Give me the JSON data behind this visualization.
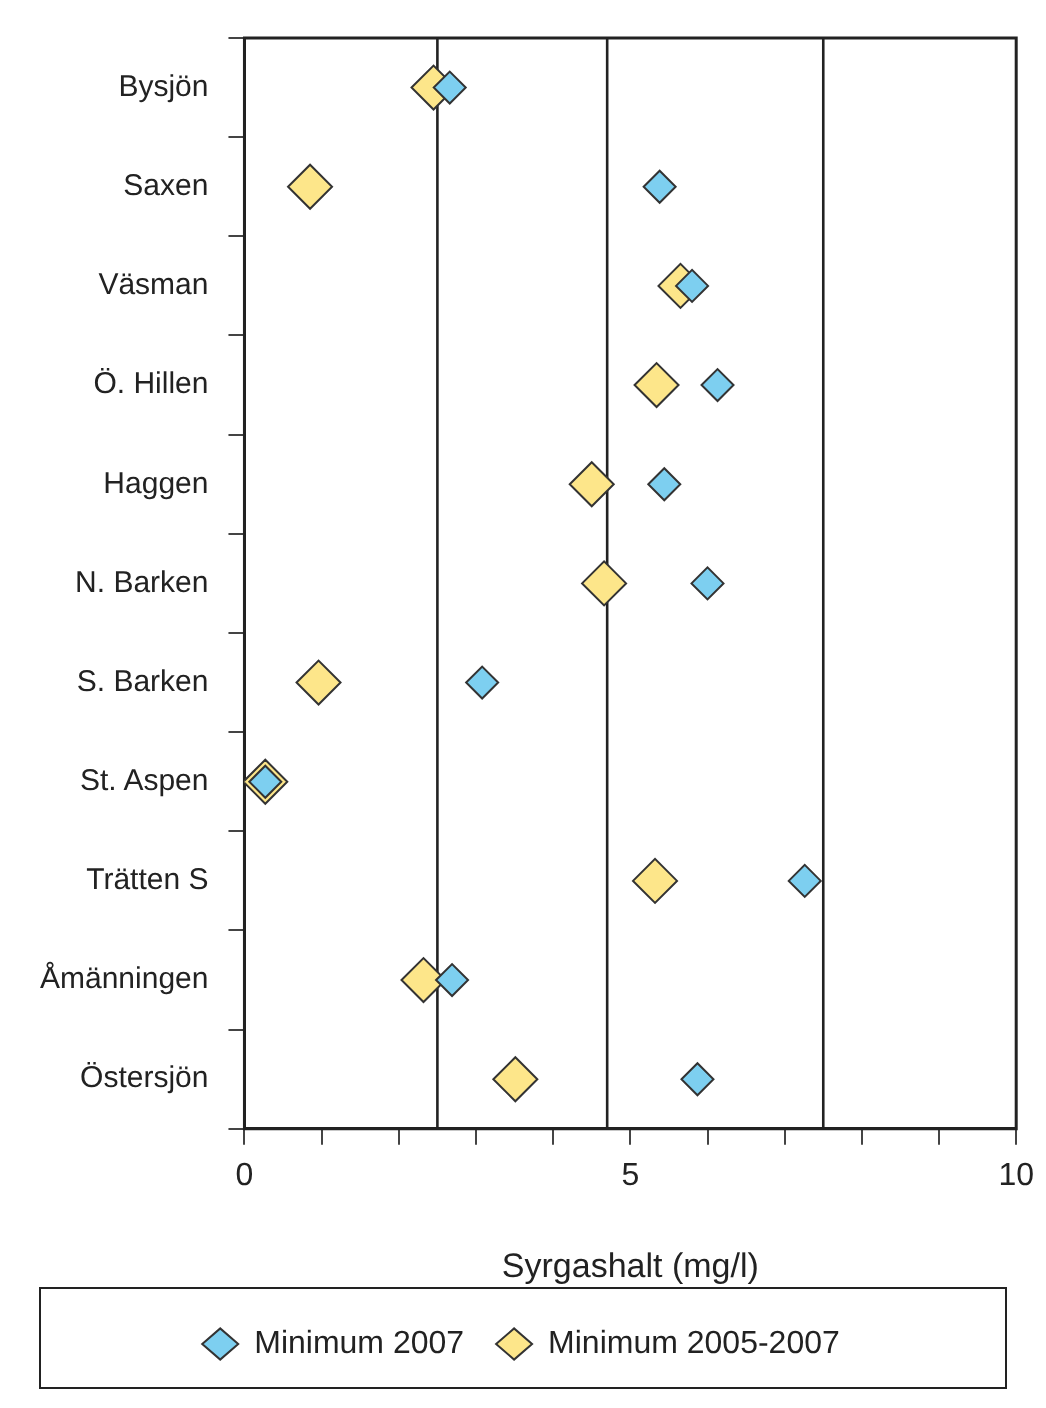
{
  "chart_data": {
    "type": "scatter",
    "orientation": "horizontal",
    "xlabel": "Syrgashalt (mg/l)",
    "categories": [
      "Bysjön",
      "Saxen",
      "Väsman",
      "Ö. Hillen",
      "Haggen",
      "N. Barken",
      "S. Barken",
      "St. Aspen",
      "Trätten S",
      "Åmänningen",
      "Östersjön"
    ],
    "series": [
      {
        "name": "Minimum 2007",
        "color": "#7dcff0",
        "values": [
          2.66,
          5.38,
          5.8,
          6.13,
          5.44,
          6.0,
          3.08,
          0.27,
          7.26,
          2.69,
          5.87
        ]
      },
      {
        "name": "Minimum 2005-2007",
        "color": "#fde68a",
        "values": [
          2.45,
          0.85,
          5.65,
          5.34,
          4.5,
          4.66,
          0.96,
          0.27,
          5.32,
          2.32,
          3.51
        ]
      }
    ],
    "xlim": [
      0,
      10
    ],
    "xticks": [
      0,
      {
        "value": 1,
        "label": null
      },
      {
        "value": 2,
        "label": null
      },
      {
        "value": 3,
        "label": null
      },
      {
        "value": 4,
        "label": null
      },
      5,
      {
        "value": 6,
        "label": null
      },
      {
        "value": 7,
        "label": null
      },
      {
        "value": 8,
        "label": null
      },
      {
        "value": 9,
        "label": null
      },
      10
    ],
    "ref_lines": [
      {
        "axis": "x",
        "value": 2.5,
        "color": "#222222"
      },
      {
        "axis": "x",
        "value": 4.7,
        "color": "#222222"
      },
      {
        "axis": "x",
        "value": 7.5,
        "color": "#222222"
      }
    ],
    "grid": false,
    "legend": "bottom",
    "marker": "diamond"
  }
}
